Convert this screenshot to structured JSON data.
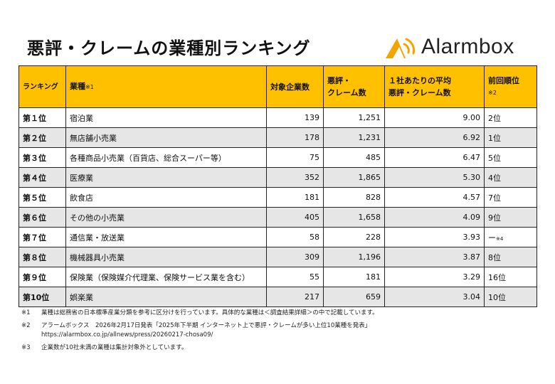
{
  "title": "悪評・クレームの業種別ランキング",
  "logo": {
    "text": "Alarmbox",
    "icon": "alarmbox-bell-logo-icon",
    "accent": "#f5a300"
  },
  "colors": {
    "header_bg": "#ffc000",
    "stripe_bg": "#e6e6e6"
  },
  "table": {
    "headers": {
      "rank": "ランキング",
      "industry": "業種",
      "industry_note": "※1",
      "companies": "対象企業数",
      "complaints_line1": "悪評・",
      "complaints_line2": "クレーム数",
      "avg_line1": "１社あたりの平均",
      "avg_line2": "悪評・クレーム数",
      "prev": "前回順位",
      "prev_note": "※2"
    },
    "rows": [
      {
        "rank": "第１位",
        "industry": "宿泊業",
        "companies": "139",
        "complaints": "1,251",
        "avg": "9.00",
        "prev": "2位",
        "prev_note": ""
      },
      {
        "rank": "第２位",
        "industry": "無店舗小売業",
        "companies": "178",
        "complaints": "1,231",
        "avg": "6.92",
        "prev": "1位",
        "prev_note": ""
      },
      {
        "rank": "第３位",
        "industry": "各種商品小売業（百貨店、総合スーパー等）",
        "companies": "75",
        "complaints": "485",
        "avg": "6.47",
        "prev": "5位",
        "prev_note": ""
      },
      {
        "rank": "第４位",
        "industry": "医療業",
        "companies": "352",
        "complaints": "1,865",
        "avg": "5.30",
        "prev": "4位",
        "prev_note": ""
      },
      {
        "rank": "第５位",
        "industry": "飲食店",
        "companies": "181",
        "complaints": "828",
        "avg": "4.57",
        "prev": "7位",
        "prev_note": ""
      },
      {
        "rank": "第６位",
        "industry": "その他の小売業",
        "companies": "405",
        "complaints": "1,658",
        "avg": "4.09",
        "prev": "9位",
        "prev_note": ""
      },
      {
        "rank": "第７位",
        "industry": "通信業・放送業",
        "companies": "58",
        "complaints": "228",
        "avg": "3.93",
        "prev": "ー",
        "prev_note": "※4"
      },
      {
        "rank": "第８位",
        "industry": "機械器具小売業",
        "companies": "309",
        "complaints": "1,196",
        "avg": "3.87",
        "prev": "8位",
        "prev_note": ""
      },
      {
        "rank": "第９位",
        "industry": "保険業（保険媒介代理業、保険サービス業を含む）",
        "companies": "55",
        "complaints": "181",
        "avg": "3.29",
        "prev": "16位",
        "prev_note": ""
      },
      {
        "rank": "第10位",
        "industry": "娯楽業",
        "companies": "217",
        "complaints": "659",
        "avg": "3.04",
        "prev": "10位",
        "prev_note": ""
      }
    ]
  },
  "notes": [
    {
      "mark": "※1",
      "lines": [
        "業種は総務省の日本標準産業分類を参考に区分けを行っています。具体的な業種は＜調査結果詳細＞の中で記載しています。"
      ]
    },
    {
      "mark": "※2",
      "lines": [
        "アラームボックス　2026年2月17日発表「2025年下半期 インターネット上で悪評・クレームが多い上位10業種を発表」",
        "https://alarmbox.co.jp/allnews/press/20260217-chosa09/"
      ]
    },
    {
      "mark": "※3",
      "lines": [
        "企業数が10社未満の業種は集計対象外としています。"
      ]
    }
  ]
}
